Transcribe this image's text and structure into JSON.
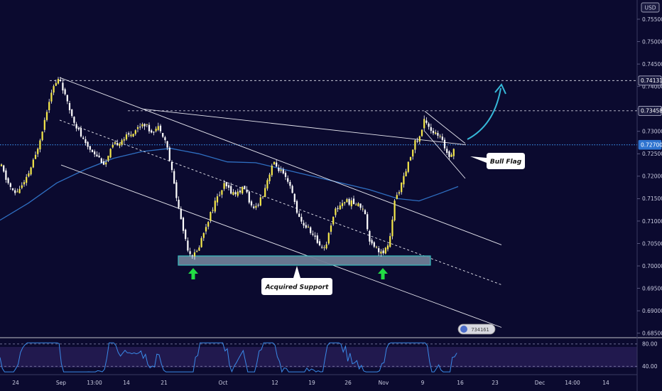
{
  "chart_data": {
    "type": "candlestick",
    "currency_label": "USD",
    "y_ticks": [
      "0.75500",
      "0.75000",
      "0.74500",
      "0.74000",
      "0.73500",
      "0.73000",
      "0.72500",
      "0.72000",
      "0.71500",
      "0.71000",
      "0.70500",
      "0.70000",
      "0.69500",
      "0.69000",
      "0.68500"
    ],
    "ylim": [
      0.684,
      0.759
    ],
    "x_ticks": [
      "24",
      "Sep",
      "13:00",
      "14",
      "21",
      "Oct",
      "12",
      "19",
      "26",
      "Nov",
      "9",
      "16",
      "23",
      "Dec",
      "14:00",
      "14"
    ],
    "price_badges": [
      {
        "value": "0.74131",
        "style": "dark"
      },
      {
        "value": "0.73458",
        "style": "dark"
      },
      {
        "value": "0.72700",
        "style": "blue"
      }
    ],
    "horizontal_levels": [
      0.74131,
      0.73458,
      0.727
    ],
    "annotations": [
      {
        "name": "support-zone-label",
        "text": "Acquired Support"
      },
      {
        "name": "bull-flag-label",
        "text": "Bull Flag"
      }
    ],
    "watermark_digits": "734161",
    "rsi": {
      "ticks": [
        "80.00",
        "40.00"
      ],
      "ylim": [
        25,
        90
      ],
      "upper": 80,
      "lower": 40
    },
    "colors": {
      "background": "#0b0a2f",
      "candle": "#f5e84a",
      "wick": "#ffffff",
      "moving_average": "#2f6fc2",
      "trendline": "#e8e8f0",
      "dashed_level": "#c8c8d8",
      "price_line": "#3b8de6",
      "support_zone": "#6e7d96",
      "support_border": "#38c8c8",
      "arrow_up": "#22dd44",
      "forecast_arrow": "#36b8d8",
      "rsi_line": "#3a8ae8",
      "rsi_band": "#2a1f5a"
    }
  }
}
